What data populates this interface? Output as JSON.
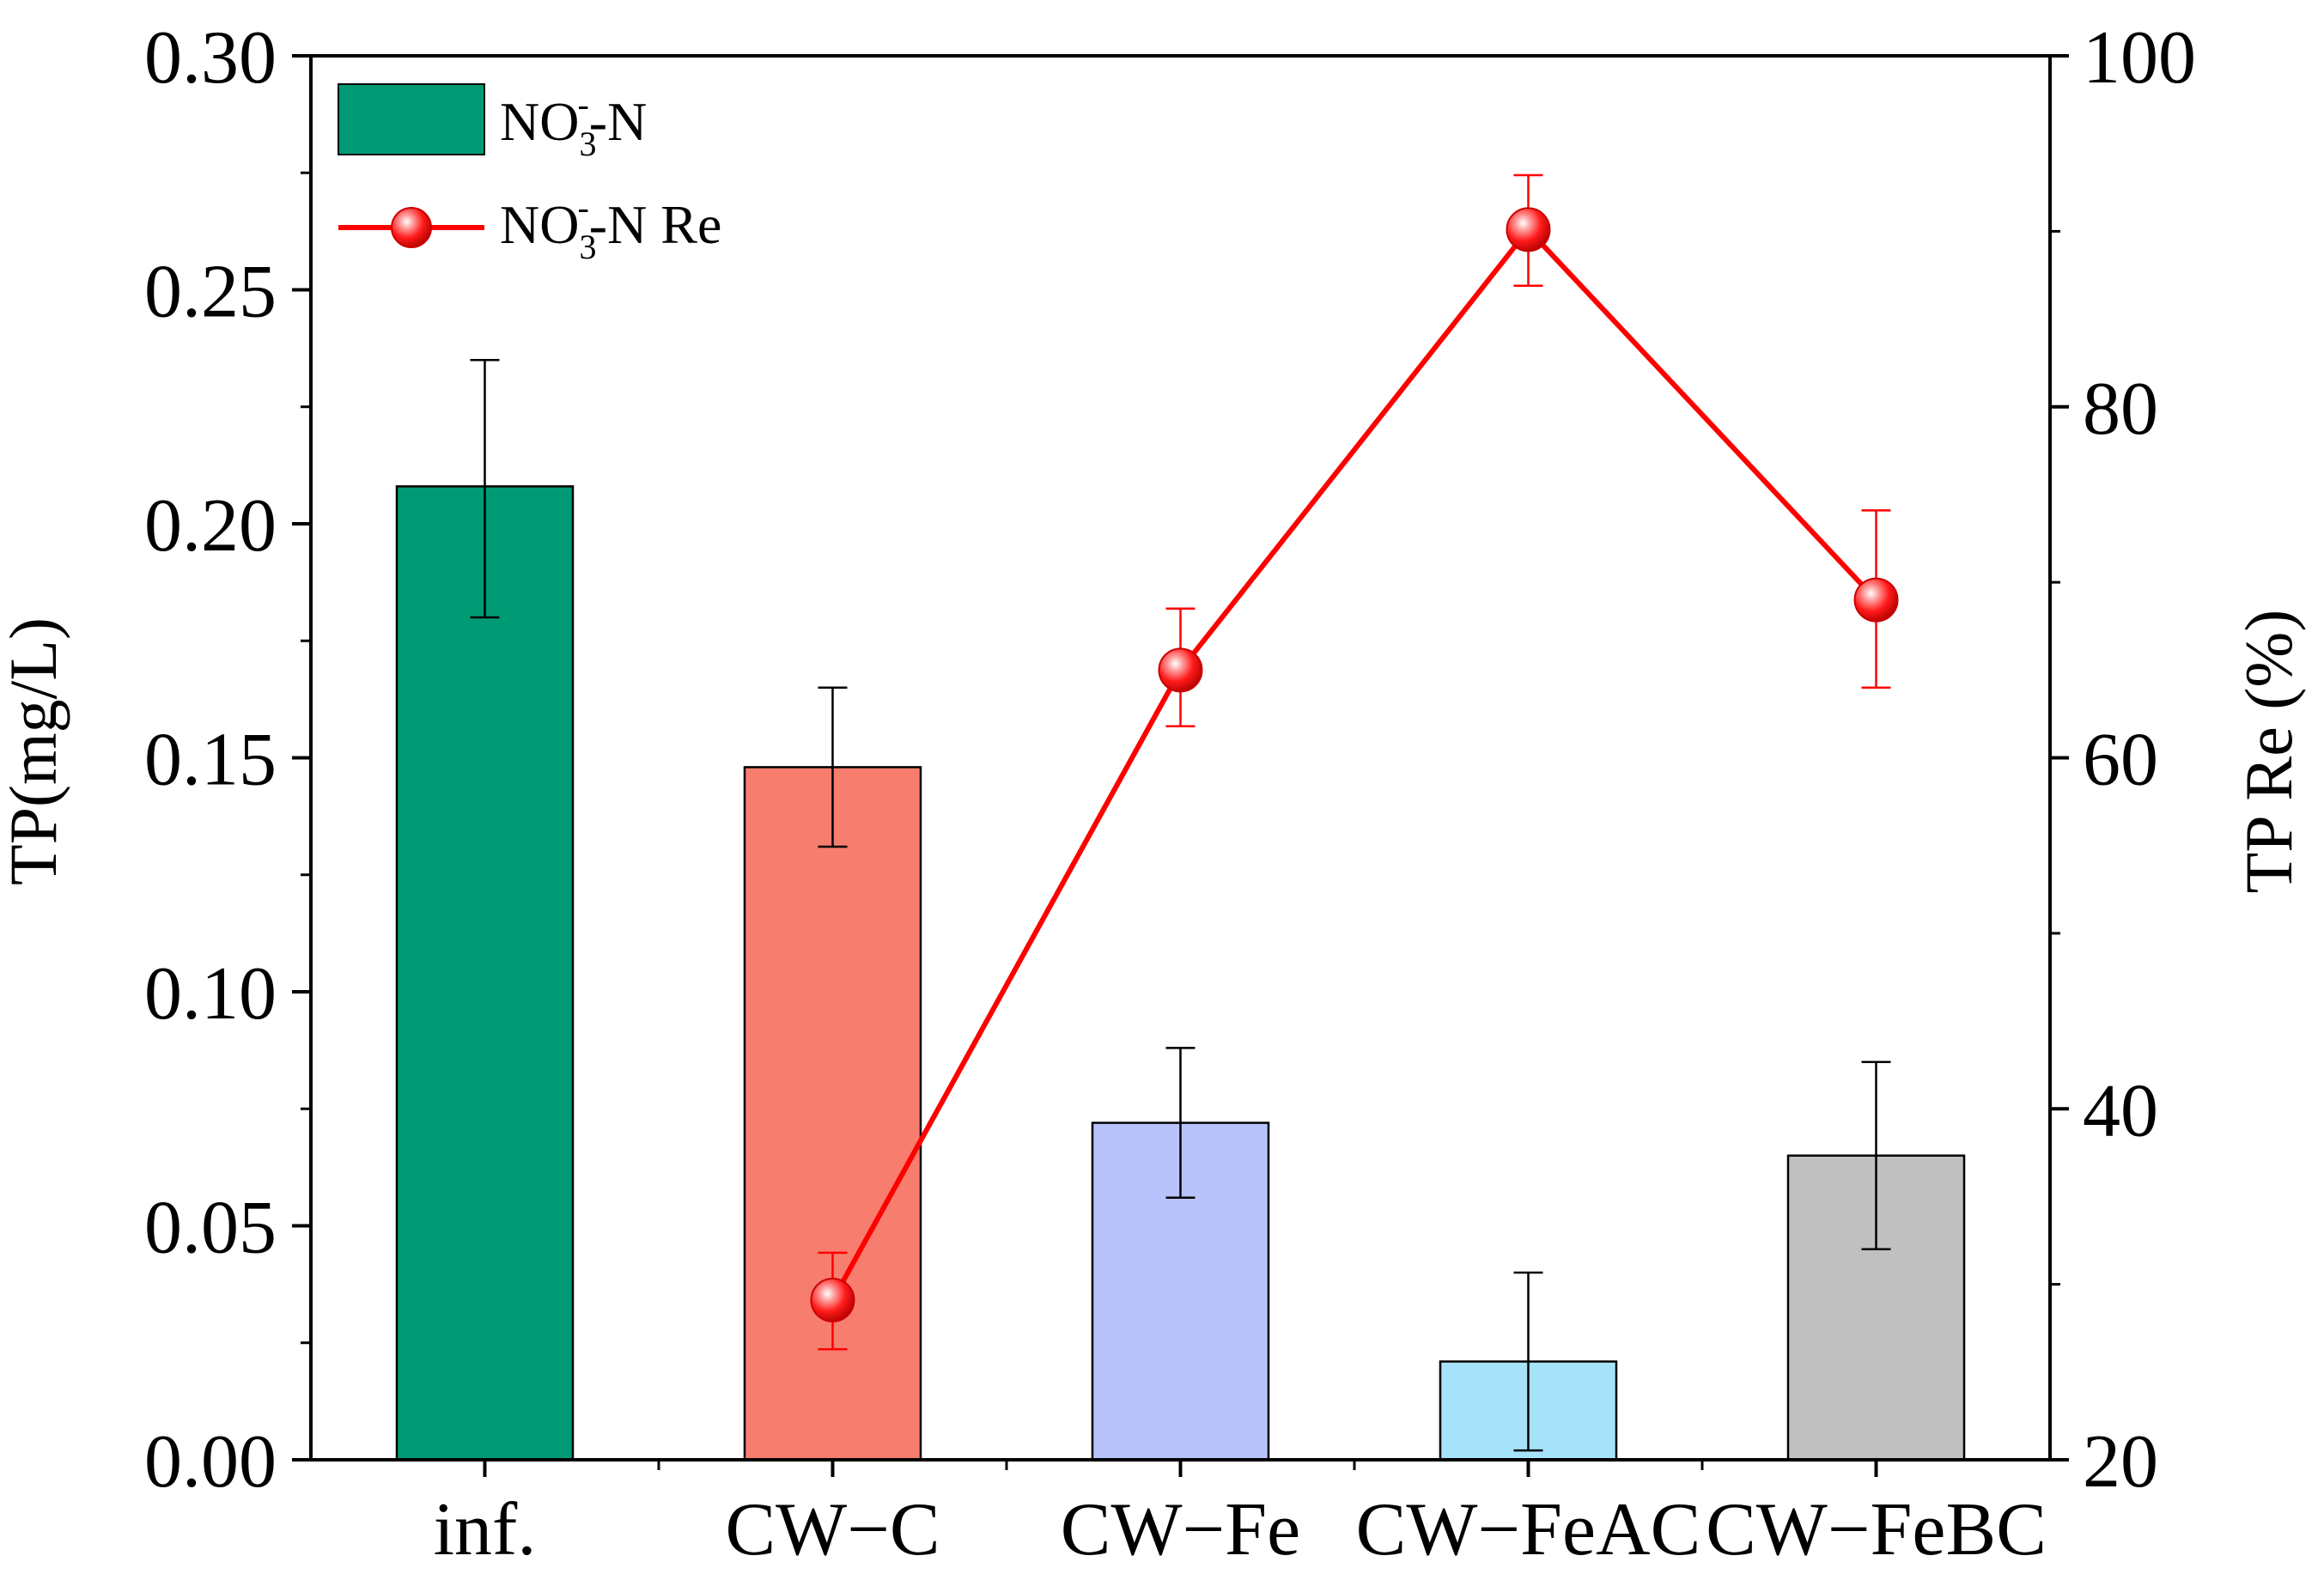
{
  "chart_data": {
    "type": "bar+line",
    "categories": [
      "inf.",
      "CW−C",
      "CW−Fe",
      "CW−FeAC",
      "CW−FeBC"
    ],
    "bar_series": {
      "name": "NO3-N",
      "axis": "left",
      "values": [
        0.208,
        0.148,
        0.072,
        0.021,
        0.065
      ],
      "error_low": [
        0.18,
        0.131,
        0.056,
        0.002,
        0.045
      ],
      "error_high": [
        0.235,
        0.165,
        0.088,
        0.04,
        0.085
      ],
      "colors": [
        "#009B74",
        "#F77D6F",
        "#B8C3FB",
        "#A6E3FA",
        "#C0C0C0"
      ]
    },
    "line_series": {
      "name": "NO3-N Re",
      "axis": "right",
      "values": [
        29.1,
        65.0,
        90.1,
        69.0
      ],
      "category_index": [
        1,
        2,
        3,
        4
      ],
      "error_low": [
        26.3,
        61.8,
        86.9,
        64.0
      ],
      "error_high": [
        31.8,
        68.5,
        93.2,
        74.1
      ],
      "color": "#FF0000"
    },
    "left_axis": {
      "label": "TP(mg/L)",
      "ylim": [
        0,
        0.3
      ],
      "ticks": [
        "0.00",
        "0.05",
        "0.10",
        "0.15",
        "0.20",
        "0.25",
        "0.30"
      ]
    },
    "right_axis": {
      "label": "TP Re (%)",
      "ylim": [
        20,
        100
      ],
      "ticks": [
        "20",
        "40",
        "60",
        "80",
        "100"
      ]
    },
    "legend": {
      "position": "top-left",
      "bar_label": {
        "main": "NO",
        "sub": "3",
        "sup": "-",
        "tail": "-N"
      },
      "line_label": {
        "main": "NO",
        "sub": "3",
        "sup": "-",
        "tail": "-N Re"
      }
    }
  }
}
